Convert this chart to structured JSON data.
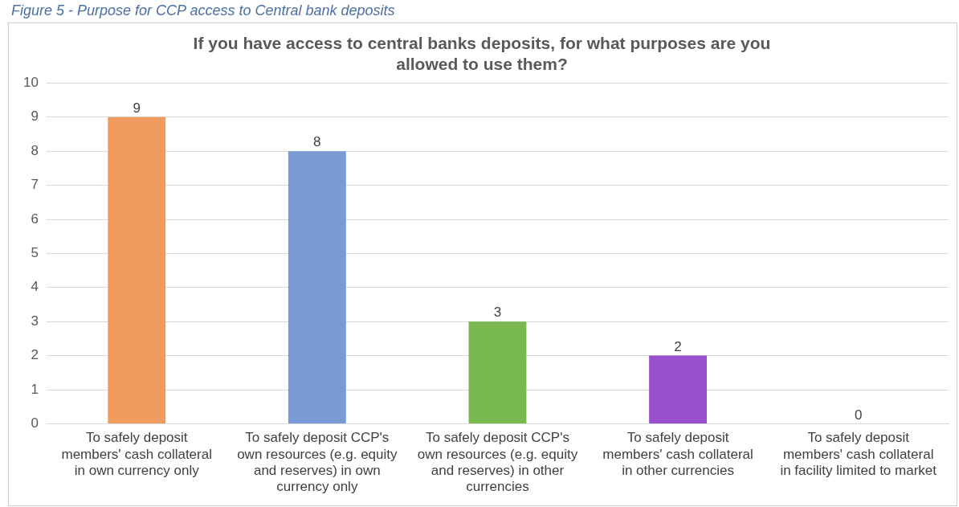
{
  "chart_data": {
    "type": "bar",
    "title": "If you have access to central banks deposits, for what purposes are you allowed to use them?",
    "annotations": [
      "Figure 5 - Purpose for CCP access to Central bank deposits"
    ],
    "categories": [
      "To safely deposit members' cash collateral in own currency only",
      "To safely deposit CCP's own resources (e.g. equity and reserves) in own currency only",
      "To safely deposit CCP's own resources (e.g. equity and reserves) in other currencies",
      "To safely deposit members' cash collateral in other currencies",
      "To safely deposit members' cash collateral in facility limited to market"
    ],
    "values": [
      9,
      8,
      3,
      2,
      0
    ],
    "colors": [
      "#f09b5f",
      "#7a9ad6",
      "#7ab851",
      "#9a4fcf",
      "#9a9a9a"
    ],
    "ylim": [
      0,
      10
    ],
    "yticks": [
      0,
      1,
      2,
      3,
      4,
      5,
      6,
      7,
      8,
      9,
      10
    ],
    "grid": "y",
    "legend": false,
    "data_labels": true
  }
}
